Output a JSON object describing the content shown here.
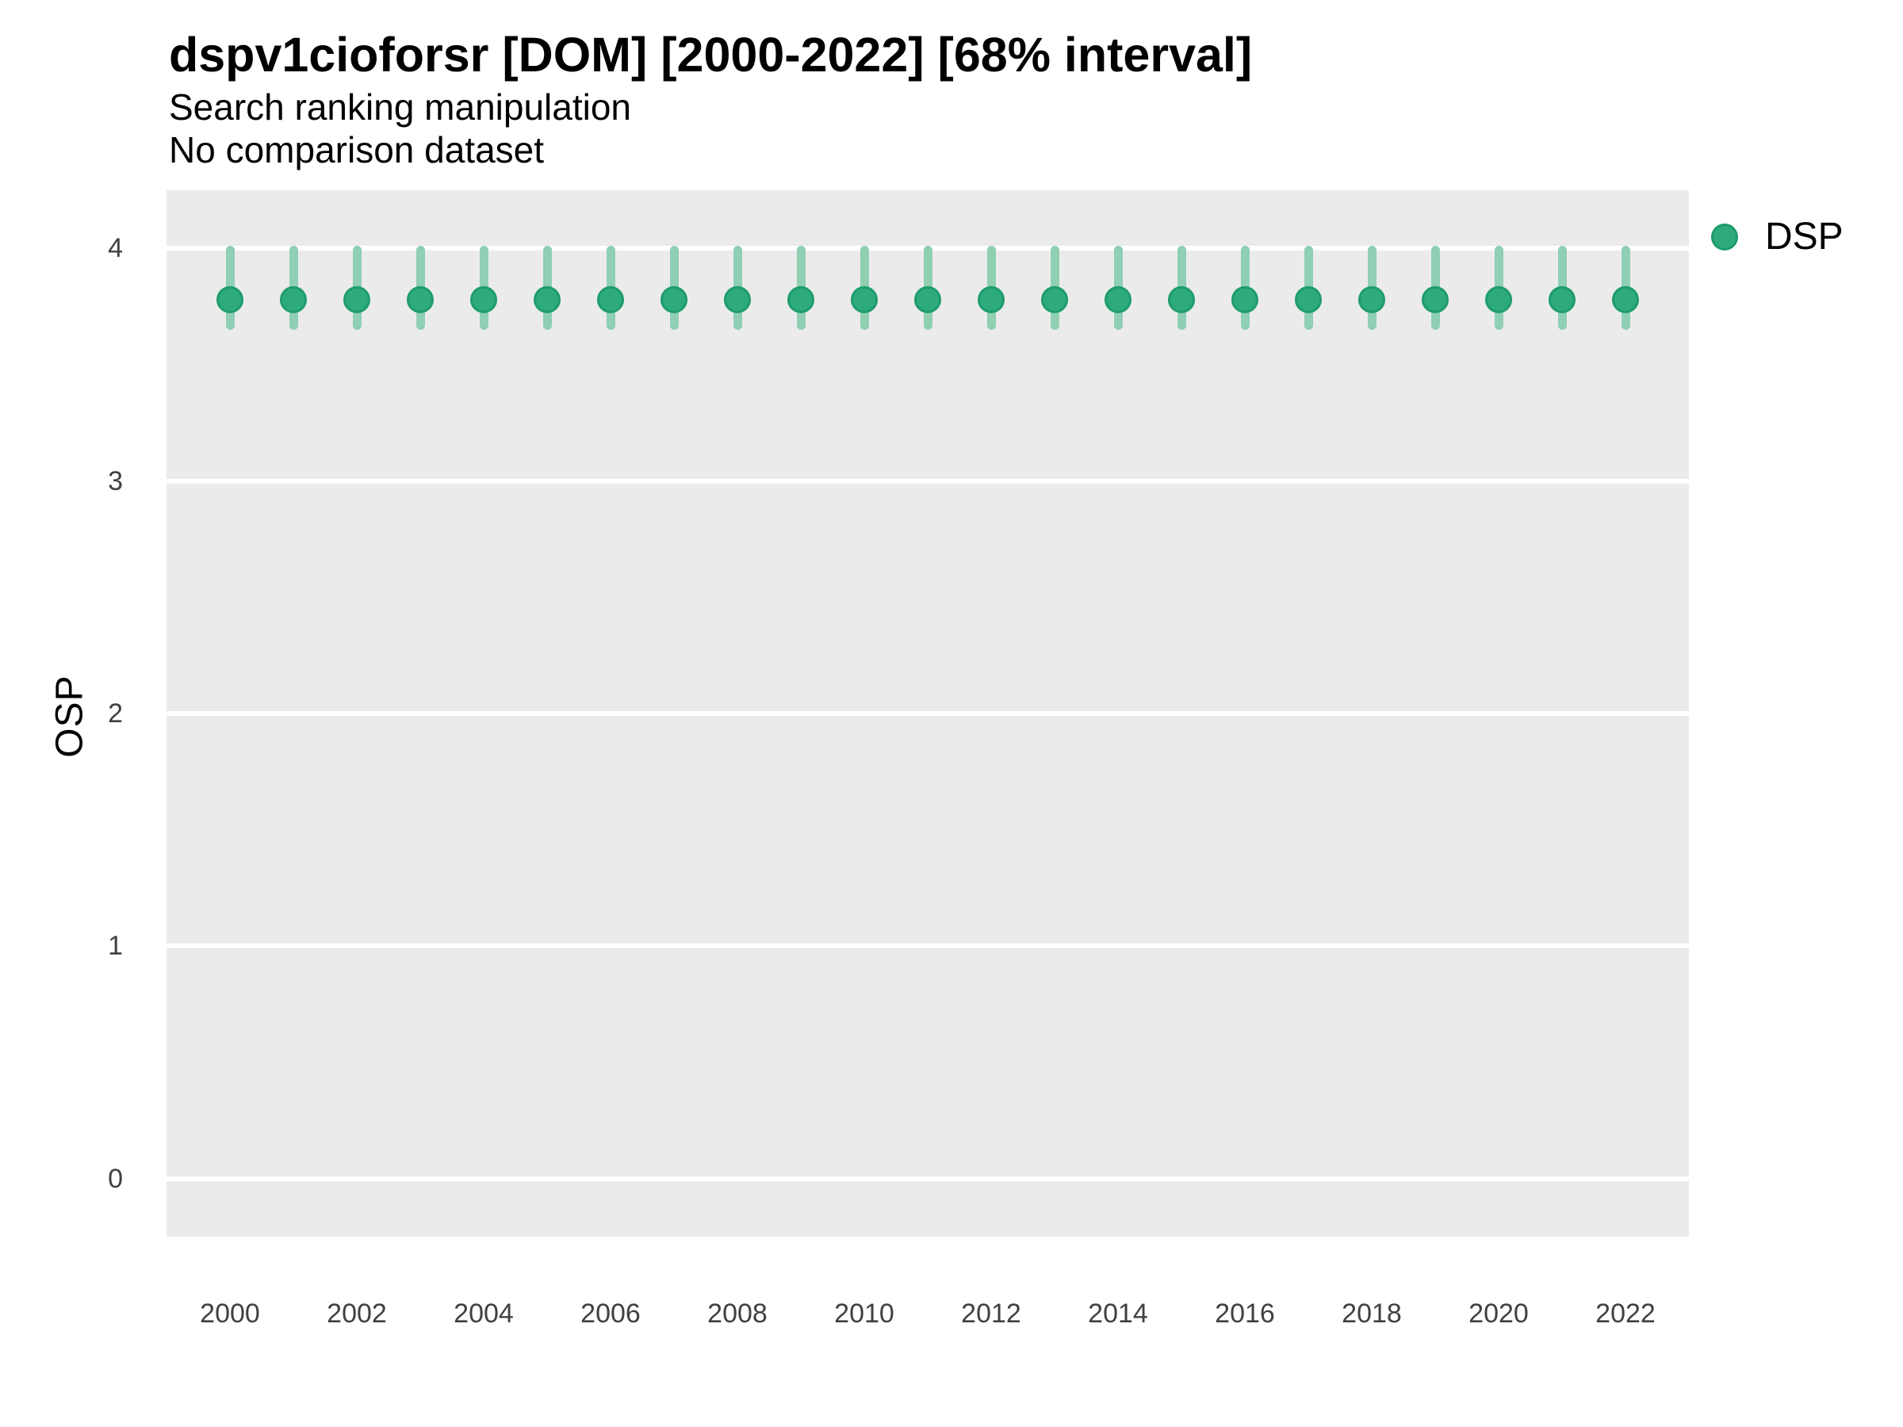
{
  "header": {
    "title": "dspv1cioforsr [DOM] [2000-2022] [68% interval]",
    "subtitle": "Search ranking manipulation",
    "note": "No comparison dataset"
  },
  "legend": {
    "position": "right-top",
    "items": [
      {
        "label": "DSP",
        "color": "#2EAB7D"
      }
    ]
  },
  "colors": {
    "panel_background": "#EBEBEB",
    "gridline": "#FFFFFF",
    "point": "#2EAB7D",
    "point_border": "#1E9C6C",
    "interval": "#8FCFB4",
    "text": "#000000",
    "axis_text": "#404040"
  },
  "chart_data": {
    "type": "pointrange",
    "title": "dspv1cioforsr [DOM] [2000-2022] [68% interval]",
    "subtitle": "Search ranking manipulation",
    "note": "No comparison dataset",
    "xlabel": "",
    "ylabel": "OSP",
    "interval_level": "68%",
    "grid": "horizontal-major-only",
    "legend_position": "right-top",
    "xlim": [
      1999,
      2023
    ],
    "ylim": [
      -0.25,
      4.25
    ],
    "yticks": [
      0,
      1,
      2,
      3,
      4
    ],
    "xticks": [
      2000,
      2002,
      2004,
      2006,
      2008,
      2010,
      2012,
      2014,
      2016,
      2018,
      2020,
      2022
    ],
    "series": [
      {
        "name": "DSP",
        "color": "#2EAB7D",
        "interval_color": "#8FCFB4",
        "points": [
          {
            "x": 2000,
            "y": 3.78,
            "lo": 3.65,
            "hi": 4.01
          },
          {
            "x": 2001,
            "y": 3.78,
            "lo": 3.65,
            "hi": 4.01
          },
          {
            "x": 2002,
            "y": 3.78,
            "lo": 3.65,
            "hi": 4.01
          },
          {
            "x": 2003,
            "y": 3.78,
            "lo": 3.65,
            "hi": 4.01
          },
          {
            "x": 2004,
            "y": 3.78,
            "lo": 3.65,
            "hi": 4.01
          },
          {
            "x": 2005,
            "y": 3.78,
            "lo": 3.65,
            "hi": 4.01
          },
          {
            "x": 2006,
            "y": 3.78,
            "lo": 3.65,
            "hi": 4.01
          },
          {
            "x": 2007,
            "y": 3.78,
            "lo": 3.65,
            "hi": 4.01
          },
          {
            "x": 2008,
            "y": 3.78,
            "lo": 3.65,
            "hi": 4.01
          },
          {
            "x": 2009,
            "y": 3.78,
            "lo": 3.65,
            "hi": 4.01
          },
          {
            "x": 2010,
            "y": 3.78,
            "lo": 3.65,
            "hi": 4.01
          },
          {
            "x": 2011,
            "y": 3.78,
            "lo": 3.65,
            "hi": 4.01
          },
          {
            "x": 2012,
            "y": 3.78,
            "lo": 3.65,
            "hi": 4.01
          },
          {
            "x": 2013,
            "y": 3.78,
            "lo": 3.65,
            "hi": 4.01
          },
          {
            "x": 2014,
            "y": 3.78,
            "lo": 3.65,
            "hi": 4.01
          },
          {
            "x": 2015,
            "y": 3.78,
            "lo": 3.65,
            "hi": 4.01
          },
          {
            "x": 2016,
            "y": 3.78,
            "lo": 3.65,
            "hi": 4.01
          },
          {
            "x": 2017,
            "y": 3.78,
            "lo": 3.65,
            "hi": 4.01
          },
          {
            "x": 2018,
            "y": 3.78,
            "lo": 3.65,
            "hi": 4.01
          },
          {
            "x": 2019,
            "y": 3.78,
            "lo": 3.65,
            "hi": 4.01
          },
          {
            "x": 2020,
            "y": 3.78,
            "lo": 3.65,
            "hi": 4.01
          },
          {
            "x": 2021,
            "y": 3.78,
            "lo": 3.65,
            "hi": 4.01
          },
          {
            "x": 2022,
            "y": 3.78,
            "lo": 3.65,
            "hi": 4.01
          }
        ]
      }
    ]
  }
}
